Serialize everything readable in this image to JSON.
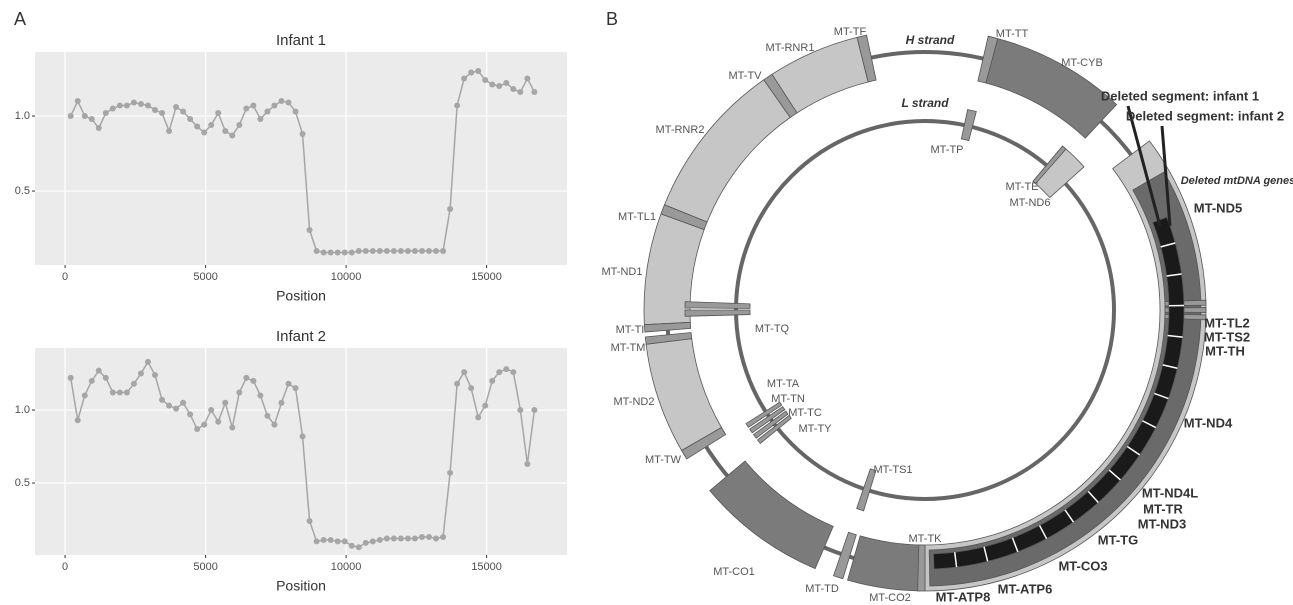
{
  "panels": [
    "A",
    "B"
  ],
  "chart_data": [
    {
      "type": "line",
      "title": "Infant 1",
      "xlabel": "Position",
      "color": "#a6a6a6",
      "grid": true,
      "xlim": [
        -1070,
        17860
      ],
      "ylim": [
        0.007,
        1.427
      ],
      "xticks": [
        0,
        5000,
        10000,
        15000
      ],
      "yticks": [
        0.5,
        {
          "value": 1,
          "label": "1.0"
        }
      ],
      "x": [
        200,
        450,
        700,
        950,
        1200,
        1450,
        1700,
        1950,
        2200,
        2450,
        2700,
        2950,
        3200,
        3450,
        3700,
        3950,
        4200,
        4450,
        4700,
        4950,
        5200,
        5450,
        5700,
        5950,
        6200,
        6450,
        6700,
        6950,
        7200,
        7450,
        7700,
        7950,
        8200,
        8450,
        8700,
        8950,
        9200,
        9450,
        9700,
        9950,
        10200,
        10450,
        10700,
        10950,
        11200,
        11450,
        11700,
        11950,
        12200,
        12450,
        12700,
        12950,
        13200,
        13450,
        13700,
        13950,
        14200,
        14450,
        14700,
        14950,
        15200,
        15450,
        15700,
        15950,
        16200,
        16450,
        16700
      ],
      "values": [
        1.0,
        1.1,
        1.0,
        0.98,
        0.92,
        1.02,
        1.05,
        1.07,
        1.07,
        1.09,
        1.08,
        1.07,
        1.04,
        1.02,
        0.9,
        1.06,
        1.03,
        0.98,
        0.93,
        0.89,
        0.94,
        1.02,
        0.9,
        0.87,
        0.94,
        1.05,
        1.07,
        0.98,
        1.03,
        1.07,
        1.1,
        1.09,
        1.03,
        0.88,
        0.24,
        0.1,
        0.09,
        0.09,
        0.09,
        0.09,
        0.09,
        0.1,
        0.1,
        0.1,
        0.1,
        0.1,
        0.1,
        0.1,
        0.1,
        0.1,
        0.1,
        0.1,
        0.1,
        0.1,
        0.38,
        1.07,
        1.25,
        1.29,
        1.3,
        1.24,
        1.21,
        1.2,
        1.22,
        1.18,
        1.16,
        1.25,
        1.16
      ]
    },
    {
      "type": "line",
      "title": "Infant 2",
      "xlabel": "Position",
      "color": "#a6a6a6",
      "grid": true,
      "xlim": [
        -1070,
        17860
      ],
      "ylim": [
        0.007,
        1.425
      ],
      "xticks": [
        0,
        5000,
        10000,
        15000
      ],
      "yticks": [
        0.5,
        {
          "value": 1,
          "label": "1.0"
        }
      ],
      "x": [
        200,
        450,
        700,
        950,
        1200,
        1450,
        1700,
        1950,
        2200,
        2450,
        2700,
        2950,
        3200,
        3450,
        3700,
        3950,
        4200,
        4450,
        4700,
        4950,
        5200,
        5450,
        5700,
        5950,
        6200,
        6450,
        6700,
        6950,
        7200,
        7450,
        7700,
        7950,
        8200,
        8450,
        8700,
        8950,
        9200,
        9450,
        9700,
        9950,
        10200,
        10450,
        10700,
        10950,
        11200,
        11450,
        11700,
        11950,
        12200,
        12450,
        12700,
        12950,
        13200,
        13450,
        13700,
        13950,
        14200,
        14450,
        14700,
        14950,
        15200,
        15450,
        15700,
        15950,
        16200,
        16450,
        16700
      ],
      "values": [
        1.22,
        0.93,
        1.1,
        1.2,
        1.27,
        1.22,
        1.12,
        1.12,
        1.12,
        1.18,
        1.25,
        1.33,
        1.24,
        1.07,
        1.03,
        1.01,
        1.05,
        0.97,
        0.87,
        0.9,
        1.0,
        0.92,
        1.05,
        0.88,
        1.12,
        1.22,
        1.2,
        1.1,
        0.96,
        0.9,
        1.05,
        1.18,
        1.15,
        0.82,
        0.24,
        0.1,
        0.11,
        0.11,
        0.1,
        0.1,
        0.07,
        0.06,
        0.09,
        0.1,
        0.11,
        0.12,
        0.12,
        0.12,
        0.12,
        0.12,
        0.13,
        0.13,
        0.12,
        0.13,
        0.57,
        1.18,
        1.26,
        1.15,
        0.95,
        1.03,
        1.2,
        1.26,
        1.28,
        1.26,
        1.0,
        0.63,
        1.0
      ]
    }
  ],
  "diagram": {
    "strands": [
      "H strand",
      "L strand"
    ],
    "genes": [
      "MT-TF",
      "MT-RNR1",
      "MT-TV",
      "MT-RNR2",
      "MT-TL1",
      "MT-ND1",
      "MT-TI",
      "MT-TM",
      "MT-ND2",
      "MT-TW",
      "MT-CO1",
      "MT-TD",
      "MT-CO2",
      "MT-TK",
      "MT-TT",
      "MT-CYB",
      "MT-TP",
      "MT-TE",
      "MT-ND6",
      "MT-TQ",
      "MT-TA",
      "MT-TN",
      "MT-TC",
      "MT-TY",
      "MT-TS1"
    ],
    "deleted_genes": [
      "MT-ND5",
      "MT-TL2",
      "MT-TS2",
      "MT-TH",
      "MT-ND4",
      "MT-ND4L",
      "MT-TR",
      "MT-ND3",
      "MT-TG",
      "MT-CO3",
      "MT-ATP6",
      "MT-ATP8"
    ],
    "deleted_title": "Deleted mtDNA genes",
    "annotations": [
      "Deleted segment: infant 1",
      "Deleted segment: infant 2"
    ]
  }
}
